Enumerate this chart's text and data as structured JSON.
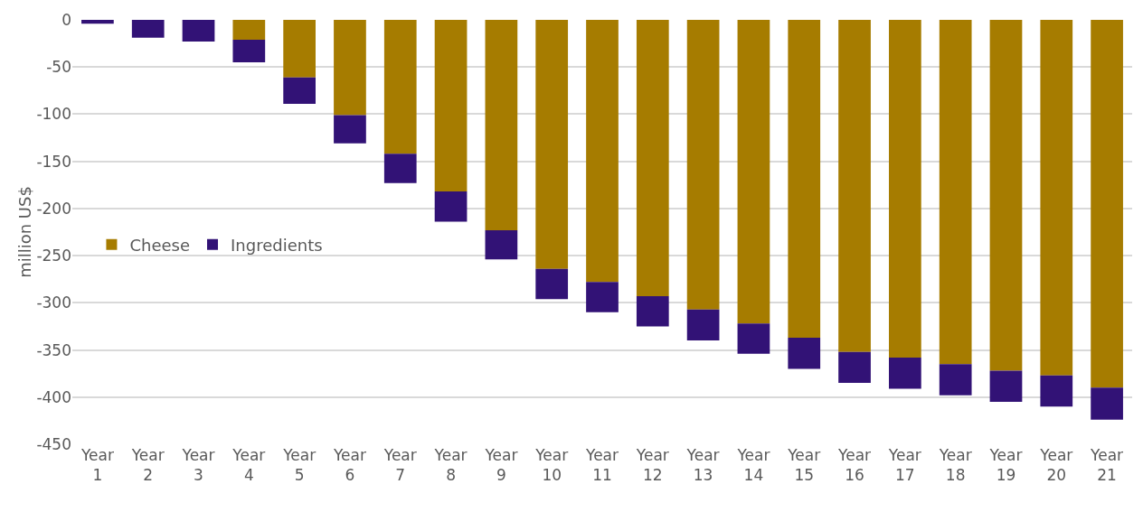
{
  "chart_data": {
    "type": "bar",
    "stacked": true,
    "ylabel": "million US$",
    "categories": [
      "Year 1",
      "Year 2",
      "Year 3",
      "Year 4",
      "Year 5",
      "Year 6",
      "Year 7",
      "Year 8",
      "Year 9",
      "Year 10",
      "Year 11",
      "Year 12",
      "Year 13",
      "Year 14",
      "Year 15",
      "Year 16",
      "Year 17",
      "Year 18",
      "Year 19",
      "Year 20",
      "Year 21"
    ],
    "series": [
      {
        "name": "Cheese",
        "color": "#a67c00",
        "values": [
          0,
          0,
          0,
          -21,
          -61,
          -101,
          -142,
          -182,
          -223,
          -264,
          -278,
          -293,
          -307,
          -322,
          -337,
          -352,
          -358,
          -365,
          -372,
          -377,
          -390
        ]
      },
      {
        "name": "Ingredients",
        "color": "#321276",
        "values": [
          -4,
          -19,
          -23,
          -24,
          -28,
          -30,
          -31,
          -32,
          -31,
          -32,
          -32,
          -32,
          -33,
          -32,
          -33,
          -33,
          -33,
          -33,
          -33,
          -33,
          -34
        ]
      }
    ],
    "ylim": [
      -450,
      0
    ],
    "yticks": [
      0,
      -50,
      -100,
      -150,
      -200,
      -250,
      -300,
      -350,
      -400,
      -450
    ],
    "grid": "y",
    "legend": "left"
  }
}
